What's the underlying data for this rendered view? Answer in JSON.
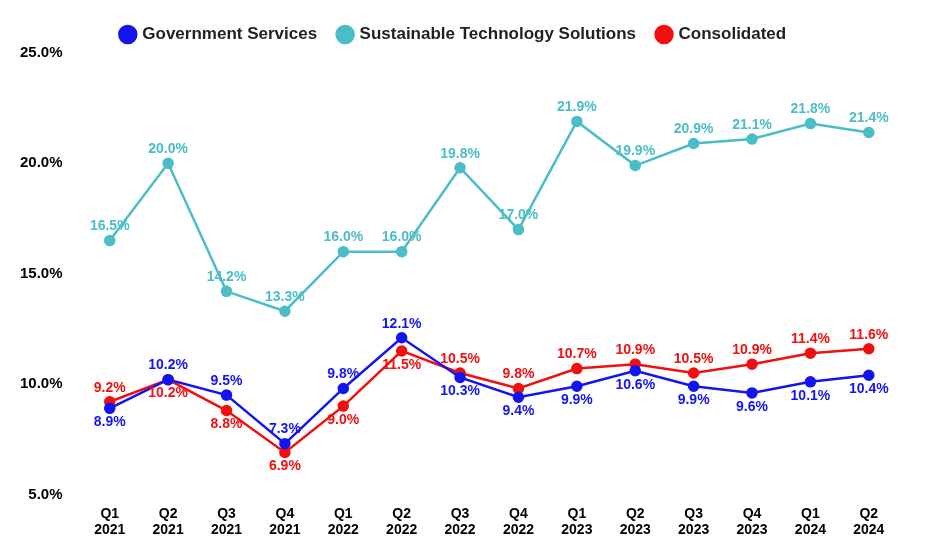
{
  "chart_data": {
    "type": "line",
    "categories": [
      "Q1 2021",
      "Q2 2021",
      "Q3 2021",
      "Q4 2021",
      "Q1 2022",
      "Q2 2022",
      "Q3 2022",
      "Q4 2022",
      "Q1 2023",
      "Q2 2023",
      "Q3 2023",
      "Q4 2023",
      "Q1 2024",
      "Q2 2024"
    ],
    "series": [
      {
        "name": "Government Services",
        "color": "#1414f0",
        "marker": "circle",
        "values": [
          8.9,
          10.2,
          9.5,
          7.3,
          9.8,
          12.1,
          10.3,
          9.4,
          9.9,
          10.6,
          9.9,
          9.6,
          10.1,
          10.4
        ],
        "value_labels": [
          "8.9%",
          "10.2%",
          "9.5%",
          "7.3%",
          "9.8%",
          "12.1%",
          "10.3%",
          "9.4%",
          "9.9%",
          "10.6%",
          "9.9%",
          "9.6%",
          "10.1%",
          "10.4%"
        ]
      },
      {
        "name": "Sustainable Technology Solutions",
        "color": "#4bbdc6",
        "marker": "circle",
        "values": [
          16.5,
          20.0,
          14.2,
          13.3,
          16.0,
          16.0,
          19.8,
          17.0,
          21.9,
          19.9,
          20.9,
          21.1,
          21.8,
          21.4
        ],
        "value_labels": [
          "16.5%",
          "20.0%",
          "14.2%",
          "13.3%",
          "16.0%",
          "16.0%",
          "19.8%",
          "17.0%",
          "21.9%",
          "19.9%",
          "20.9%",
          "21.1%",
          "21.8%",
          "21.4%"
        ]
      },
      {
        "name": "Consolidated",
        "color": "#f01010",
        "marker": "circle",
        "values": [
          9.2,
          10.2,
          8.8,
          6.9,
          9.0,
          11.5,
          10.5,
          9.8,
          10.7,
          10.9,
          10.5,
          10.9,
          11.4,
          11.6
        ],
        "value_labels": [
          "9.2%",
          "10.2%",
          "8.8%",
          "6.9%",
          "9.0%",
          "11.5%",
          "10.5%",
          "9.8%",
          "10.7%",
          "10.9%",
          "10.5%",
          "10.9%",
          "11.4%",
          "11.6%"
        ]
      }
    ],
    "ylim": [
      5,
      25
    ],
    "yticks": [
      {
        "value": 5,
        "label": "5.0%"
      },
      {
        "value": 10,
        "label": "10.0%"
      },
      {
        "value": 15,
        "label": "15.0%"
      },
      {
        "value": 20,
        "label": "20.0%"
      },
      {
        "value": 25,
        "label": "25.0%"
      }
    ],
    "grid": false,
    "legend": "top",
    "data_labels": true
  }
}
